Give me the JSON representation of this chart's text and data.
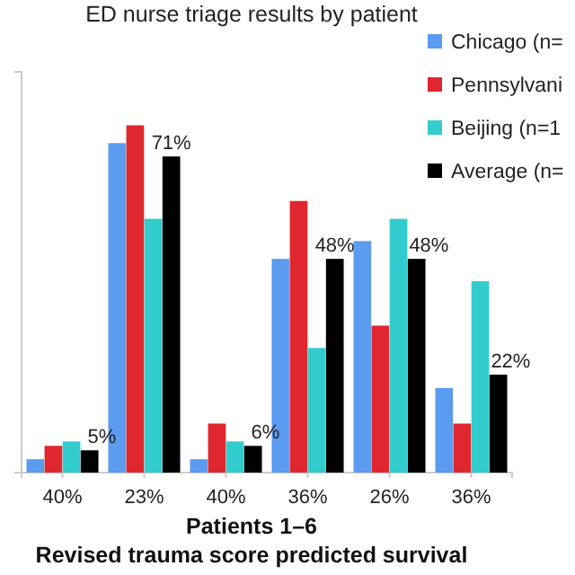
{
  "chart_data": {
    "type": "bar",
    "title": "ED nurse triage results by patient",
    "xlabel": "Patients 1–6\nRevised trauma score predicted survival",
    "categories": [
      "40%",
      "23%",
      "40%",
      "36%",
      "26%",
      "36%"
    ],
    "series": [
      {
        "name": "Chicago (n=",
        "color": "#5b9bf0",
        "values": [
          3,
          74,
          3,
          48,
          52,
          19
        ]
      },
      {
        "name": "Pennsylvani",
        "color": "#e0262e",
        "values": [
          6,
          78,
          11,
          61,
          33,
          11
        ]
      },
      {
        "name": "Beijing (n=1",
        "color": "#33cccc",
        "values": [
          7,
          57,
          7,
          28,
          57,
          43
        ]
      },
      {
        "name": "Average (n=",
        "color": "#000000",
        "values": [
          5,
          71,
          6,
          48,
          48,
          22
        ],
        "value_labels": [
          "5%",
          "71%",
          "6%",
          "48%",
          "48%",
          "22%"
        ]
      }
    ],
    "ylim": [
      0,
      90
    ],
    "tick_labels": "x",
    "legend": "top right"
  }
}
